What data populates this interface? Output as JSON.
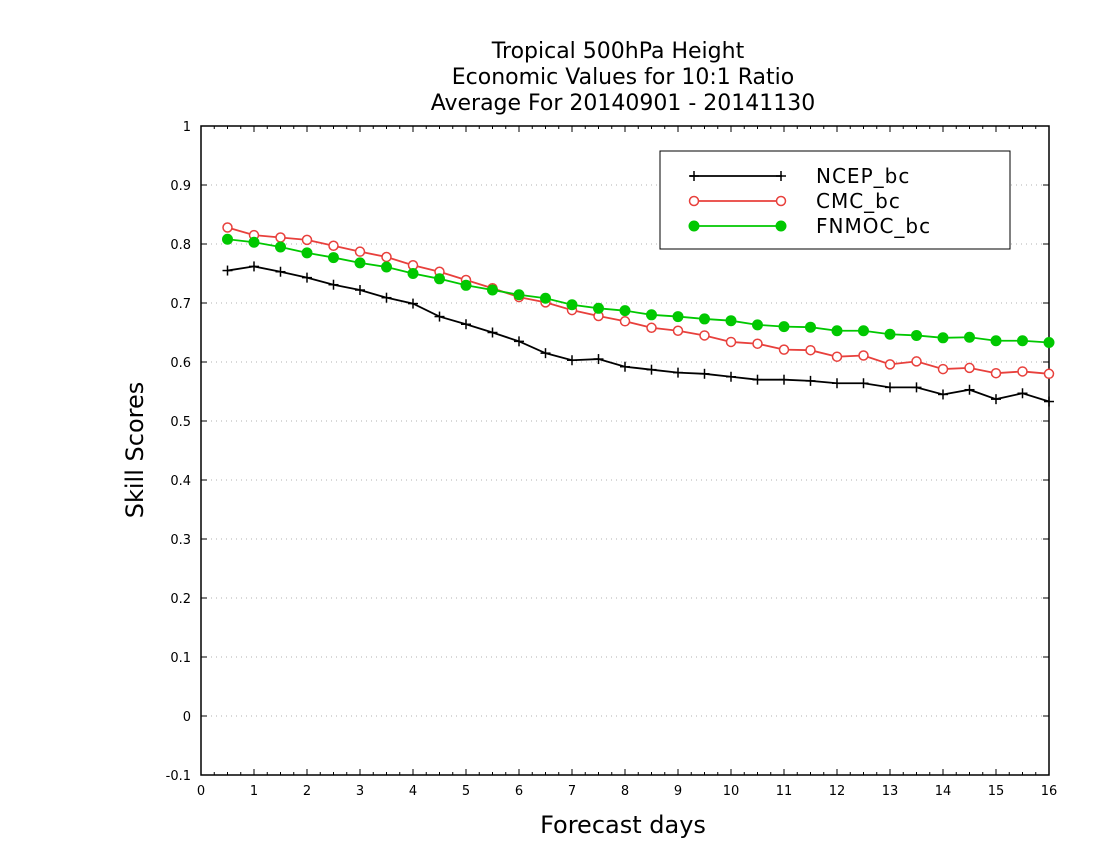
{
  "chart_data": {
    "type": "line",
    "title_lines": [
      "Tropical 500hPa Height",
      "Economic Values for 10:1 Ratio",
      "Average For 20140901 - 20141130"
    ],
    "xlabel": "Forecast days",
    "ylabel": "Skill Scores",
    "xlim": [
      0,
      16
    ],
    "ylim": [
      -0.1,
      1
    ],
    "x_ticks": [
      0,
      1,
      2,
      3,
      4,
      5,
      6,
      7,
      8,
      9,
      10,
      11,
      12,
      13,
      14,
      15,
      16
    ],
    "y_ticks": [
      -0.1,
      0,
      0.1,
      0.2,
      0.3,
      0.4,
      0.5,
      0.6,
      0.7,
      0.8,
      0.9,
      1
    ],
    "y_tick_labels": [
      "-0.1",
      "0",
      "0.1",
      "0.2",
      "0.3",
      "0.4",
      "0.5",
      "0.6",
      "0.7",
      "0.8",
      "0.9",
      "1"
    ],
    "grid": "horizontal dotted",
    "legend_position": "top-right",
    "x": [
      0.5,
      1,
      1.5,
      2,
      2.5,
      3,
      3.5,
      4,
      4.5,
      5,
      5.5,
      6,
      6.5,
      7,
      7.5,
      8,
      8.5,
      9,
      9.5,
      10,
      10.5,
      11,
      11.5,
      12,
      12.5,
      13,
      13.5,
      14,
      14.5,
      15,
      15.5,
      16
    ],
    "series": [
      {
        "name": "NCEP_bc",
        "color": "#000000",
        "marker": "plus",
        "values": [
          0.755,
          0.762,
          0.753,
          0.743,
          0.731,
          0.722,
          0.709,
          0.699,
          0.677,
          0.664,
          0.65,
          0.635,
          0.615,
          0.603,
          0.605,
          0.592,
          0.587,
          0.582,
          0.58,
          0.575,
          0.57,
          0.57,
          0.568,
          0.564,
          0.564,
          0.557,
          0.557,
          0.545,
          0.553,
          0.537,
          0.547,
          0.533
        ]
      },
      {
        "name": "CMC_bc",
        "color": "#e8403c",
        "marker": "open-circle",
        "values": [
          0.828,
          0.815,
          0.811,
          0.807,
          0.797,
          0.787,
          0.778,
          0.764,
          0.753,
          0.739,
          0.725,
          0.71,
          0.701,
          0.688,
          0.678,
          0.669,
          0.658,
          0.653,
          0.645,
          0.634,
          0.631,
          0.621,
          0.62,
          0.609,
          0.611,
          0.596,
          0.601,
          0.588,
          0.59,
          0.581,
          0.584,
          0.58
        ]
      },
      {
        "name": "FNMOC_bc",
        "color": "#00c800",
        "marker": "filled-circle",
        "values": [
          0.808,
          0.803,
          0.795,
          0.785,
          0.777,
          0.768,
          0.761,
          0.75,
          0.741,
          0.73,
          0.722,
          0.714,
          0.708,
          0.697,
          0.691,
          0.687,
          0.68,
          0.677,
          0.673,
          0.67,
          0.663,
          0.66,
          0.659,
          0.653,
          0.653,
          0.647,
          0.645,
          0.641,
          0.642,
          0.636,
          0.636,
          0.633
        ]
      }
    ]
  }
}
